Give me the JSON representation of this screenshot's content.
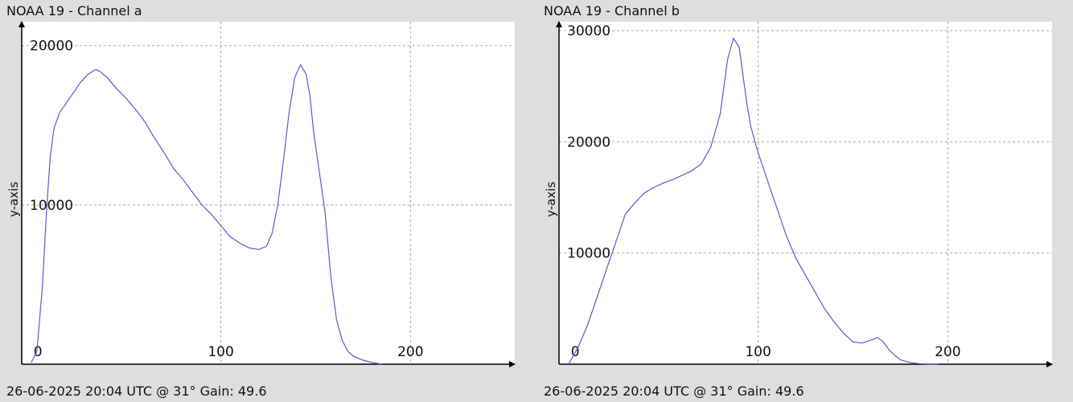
{
  "chart_data": [
    {
      "type": "line",
      "title": "NOAA 19 - Channel a",
      "footer": "26-06-2025 20:04 UTC @ 31° Gain: 49.6",
      "ylabel": "y-axis",
      "xlim": [
        -5,
        255
      ],
      "ylim": [
        0,
        21500
      ],
      "xticks": [
        0,
        100,
        200
      ],
      "yticks": [
        10000,
        20000
      ],
      "grid": true,
      "series": [
        {
          "color": "#5a5ad2",
          "x": [
            0,
            3,
            6,
            8,
            10,
            12,
            15,
            18,
            22,
            26,
            30,
            34,
            36,
            40,
            45,
            50,
            55,
            60,
            65,
            70,
            75,
            80,
            85,
            90,
            95,
            100,
            105,
            110,
            115,
            120,
            124,
            127,
            130,
            133,
            136,
            139,
            142,
            145,
            147,
            149,
            152,
            155,
            158,
            161,
            164,
            167,
            170,
            175,
            180,
            185
          ],
          "y": [
            100,
            800,
            5000,
            9500,
            13000,
            14800,
            15800,
            16300,
            17000,
            17700,
            18200,
            18500,
            18400,
            18000,
            17300,
            16700,
            16000,
            15200,
            14200,
            13300,
            12300,
            11600,
            10800,
            10000,
            9400,
            8700,
            8000,
            7600,
            7300,
            7200,
            7400,
            8200,
            10000,
            12800,
            15800,
            18000,
            18800,
            18200,
            16800,
            14500,
            12000,
            9500,
            5500,
            2800,
            1500,
            800,
            500,
            250,
            100,
            0
          ]
        }
      ]
    },
    {
      "type": "line",
      "title": "NOAA 19 - Channel b",
      "footer": "26-06-2025 20:04 UTC @ 31° Gain: 49.6",
      "ylabel": "y-axis",
      "xlim": [
        -5,
        255
      ],
      "ylim": [
        0,
        30800
      ],
      "xticks": [
        0,
        100,
        200
      ],
      "yticks": [
        10000,
        20000,
        30000
      ],
      "grid": true,
      "series": [
        {
          "color": "#5a5ad2",
          "x": [
            0,
            5,
            10,
            15,
            20,
            25,
            30,
            35,
            40,
            45,
            50,
            55,
            60,
            65,
            70,
            75,
            80,
            84,
            87,
            90,
            92,
            94,
            96,
            98,
            100,
            105,
            110,
            115,
            120,
            125,
            130,
            135,
            140,
            145,
            150,
            155,
            160,
            163,
            166,
            169,
            172,
            175,
            180,
            185,
            190,
            195
          ],
          "y": [
            0,
            1500,
            3500,
            6000,
            8500,
            11000,
            13500,
            14500,
            15400,
            15900,
            16300,
            16600,
            17000,
            17400,
            18000,
            19500,
            22500,
            27500,
            29300,
            28500,
            26000,
            23500,
            21500,
            20200,
            19000,
            16500,
            14000,
            11500,
            9500,
            8000,
            6500,
            5000,
            3800,
            2800,
            2000,
            1900,
            2200,
            2400,
            2000,
            1300,
            800,
            400,
            150,
            50,
            0,
            0
          ]
        }
      ]
    }
  ]
}
